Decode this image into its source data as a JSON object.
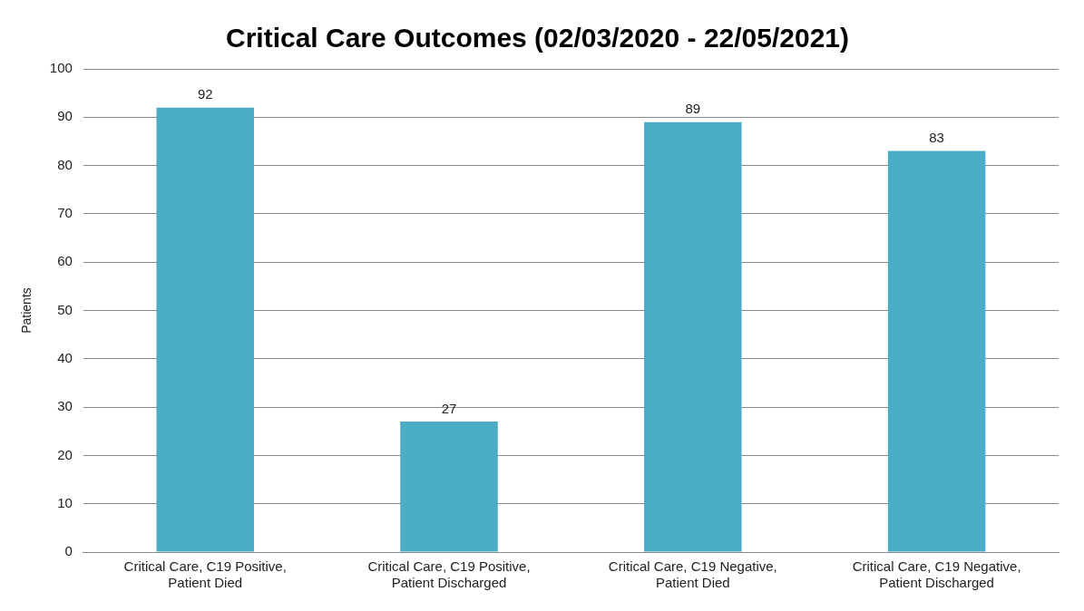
{
  "chart_data": {
    "type": "bar",
    "title": "Critical Care Outcomes (02/03/2020 - 22/05/2021)",
    "ylabel": "Patients",
    "categories": [
      "Critical Care, C19 Positive, Patient Died",
      "Critical Care, C19 Positive, Patient Discharged",
      "Critical Care, C19 Negative, Patient Died",
      "Critical Care, C19 Negative, Patient Discharged"
    ],
    "values": [
      92,
      27,
      89,
      83
    ],
    "color": "#4bacc6",
    "ylim": [
      0,
      100
    ],
    "yticks": [
      0,
      10,
      20,
      30,
      40,
      50,
      60,
      70,
      80,
      90,
      100
    ],
    "grid": "y",
    "data_labels": true
  }
}
